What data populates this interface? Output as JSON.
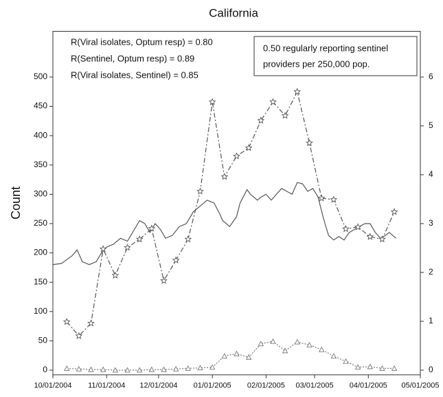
{
  "chart_data": {
    "type": "line",
    "title": "California",
    "y_label": "Count",
    "annotations": [
      "R(Viral isolates, Optum resp) = 0.80",
      "R(Sentinel, Optum resp) = 0.89",
      "R(Viral isolates, Sentinel) = 0.85"
    ],
    "box_text": [
      "0.50 regularly reporting sentinel",
      "providers per 250,000 pop."
    ],
    "xlim": [
      0,
      212
    ],
    "xticks": [
      {
        "value": 0,
        "label": "10/01/2004"
      },
      {
        "value": 31,
        "label": "11/01/2004"
      },
      {
        "value": 61,
        "label": "12/01/2004"
      },
      {
        "value": 92,
        "label": "01/01/2005"
      },
      {
        "value": 123,
        "label": "02/01/2005"
      },
      {
        "value": 151,
        "label": "03/01/2005"
      },
      {
        "value": 182,
        "label": "04/01/2005"
      },
      {
        "value": 212,
        "label": "05/01/2005"
      }
    ],
    "ylim": [
      -8,
      578
    ],
    "yticks": [
      0,
      50,
      100,
      150,
      200,
      250,
      300,
      350,
      400,
      450,
      500
    ],
    "y2lim": [
      -0.096,
      6.936
    ],
    "y2ticks": [
      0,
      1,
      2,
      3,
      4,
      5,
      6
    ],
    "series": [
      {
        "color": "#555555",
        "style": "solid",
        "marker": "none",
        "x": [
          0,
          5,
          11,
          14,
          17,
          21,
          25,
          28,
          31,
          35,
          39,
          43,
          47,
          50,
          53,
          56,
          59,
          62,
          65,
          69,
          73,
          77,
          81,
          85,
          89,
          93,
          96,
          98,
          102,
          106,
          108,
          112,
          114,
          118,
          120,
          123,
          126,
          129,
          132,
          135,
          138,
          141,
          144,
          147,
          150,
          153,
          156,
          159,
          162,
          165,
          168,
          171,
          174,
          177,
          180,
          183,
          186,
          189,
          192,
          194,
          198
        ],
        "values": [
          180,
          182,
          195,
          205,
          185,
          180,
          185,
          200,
          210,
          215,
          225,
          220,
          240,
          255,
          250,
          235,
          250,
          240,
          225,
          230,
          245,
          250,
          270,
          280,
          290,
          285,
          268,
          255,
          245,
          262,
          285,
          308,
          300,
          290,
          295,
          300,
          290,
          300,
          310,
          305,
          300,
          320,
          318,
          305,
          310,
          295,
          260,
          230,
          222,
          228,
          222,
          235,
          240,
          245,
          250,
          250,
          235,
          225,
          230,
          235,
          225
        ]
      },
      {
        "color": "#555555",
        "style": "dashdot",
        "marker": "star",
        "axis": "y2",
        "x": [
          8,
          15,
          22,
          29,
          36,
          43,
          50,
          57,
          64,
          71,
          78,
          85,
          92,
          99,
          106,
          113,
          120,
          127,
          134,
          141,
          148,
          155,
          162,
          169,
          176,
          183,
          190,
          197
        ],
        "values": [
          0.99,
          0.7,
          0.96,
          2.48,
          1.94,
          2.51,
          2.68,
          2.9,
          1.83,
          2.25,
          2.68,
          3.66,
          5.49,
          3.96,
          4.38,
          4.55,
          5.11,
          5.49,
          5.21,
          5.7,
          4.65,
          3.52,
          3.49,
          2.89,
          2.93,
          2.73,
          2.68,
          3.24
        ]
      },
      {
        "color": "#777777",
        "style": "dotted",
        "marker": "triangle",
        "x": [
          8,
          15,
          22,
          29,
          36,
          43,
          50,
          57,
          64,
          71,
          78,
          85,
          92,
          99,
          106,
          113,
          120,
          127,
          134,
          141,
          148,
          155,
          162,
          169,
          176,
          183,
          190,
          197
        ],
        "values": [
          3,
          2,
          1,
          1,
          0,
          0,
          0,
          1,
          1,
          2,
          3,
          4,
          5,
          24,
          28,
          22,
          45,
          49,
          33,
          48,
          43,
          35,
          24,
          15,
          5,
          6,
          3,
          3
        ]
      }
    ]
  }
}
